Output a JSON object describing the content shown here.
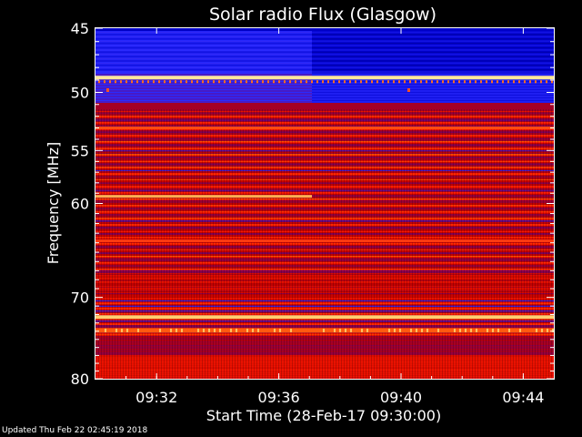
{
  "chart_data": {
    "type": "heatmap",
    "title": "Solar radio Flux (Glasgow)",
    "xlabel": "Start Time (28-Feb-17 09:30:00)",
    "ylabel": "Frequency [MHz]",
    "x_range": [
      "09:30:00",
      "09:45:00"
    ],
    "y_range": [
      45,
      80
    ],
    "y_scale": "log",
    "y_inverted": true,
    "x_ticks": [
      "09:32",
      "09:36",
      "09:40",
      "09:44"
    ],
    "y_ticks": [
      45,
      50,
      55,
      60,
      70,
      80
    ],
    "colormap": [
      "#000033",
      "#0000cc",
      "#2a2aff",
      "#7a0060",
      "#c00000",
      "#ff1a00",
      "#ff8000",
      "#ffe070",
      "#ffffff"
    ],
    "bright_lines_mhz": [
      48.8,
      53.0,
      59.3,
      63.8,
      72.3,
      73.9
    ],
    "grid": false,
    "legend": "none"
  },
  "footer": {
    "updated": "Updated Thu Feb 22 02:45:19 2018"
  }
}
